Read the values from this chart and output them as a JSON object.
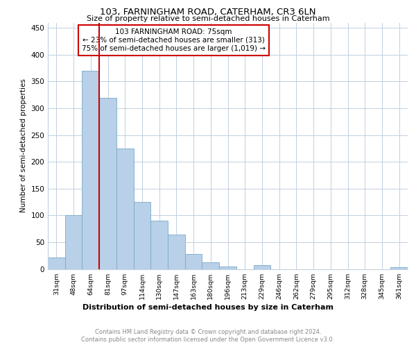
{
  "title": "103, FARNINGHAM ROAD, CATERHAM, CR3 6LN",
  "subtitle": "Size of property relative to semi-detached houses in Caterham",
  "xlabel": "Distribution of semi-detached houses by size in Caterham",
  "ylabel": "Number of semi-detached properties",
  "footer1": "Contains HM Land Registry data © Crown copyright and database right 2024.",
  "footer2": "Contains public sector information licensed under the Open Government Licence v3.0.",
  "annotation_line1": "103 FARNINGHAM ROAD: 75sqm",
  "annotation_line2": "← 23% of semi-detached houses are smaller (313)",
  "annotation_line3": "75% of semi-detached houses are larger (1,019) →",
  "categories": [
    "31sqm",
    "48sqm",
    "64sqm",
    "81sqm",
    "97sqm",
    "114sqm",
    "130sqm",
    "147sqm",
    "163sqm",
    "180sqm",
    "196sqm",
    "213sqm",
    "229sqm",
    "246sqm",
    "262sqm",
    "279sqm",
    "295sqm",
    "312sqm",
    "328sqm",
    "345sqm",
    "361sqm"
  ],
  "values": [
    21,
    100,
    370,
    320,
    225,
    125,
    90,
    64,
    28,
    12,
    4,
    0,
    7,
    0,
    0,
    0,
    0,
    0,
    0,
    0,
    3
  ],
  "bar_color": "#b8d0e8",
  "bar_edge_color": "#7aaac8",
  "vline_color": "#cc0000",
  "vline_x_index": 3,
  "annotation_box_color": "#cc0000",
  "ylim": [
    0,
    460
  ],
  "yticks": [
    0,
    50,
    100,
    150,
    200,
    250,
    300,
    350,
    400,
    450
  ]
}
